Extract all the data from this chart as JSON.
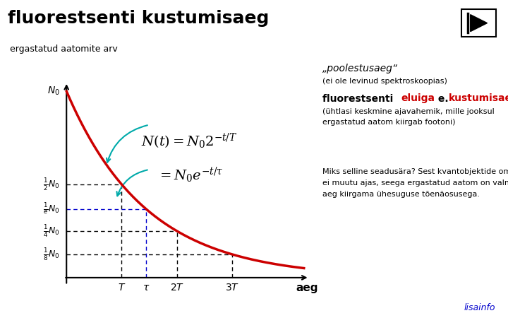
{
  "title": "fluorestsenti kustumisaeg",
  "ylabel": "ergastatud aatomite arv",
  "xlabel_aeg": "aeg",
  "background_color": "#ffffff",
  "curve_color": "#cc0000",
  "dashed_black_color": "#000000",
  "dashed_blue_color": "#0000cc",
  "arrow_cyan_color": "#00AAAA",
  "poolestusaeg_line1": "„poolestusaeg“",
  "poolestusaeg_line2": "(ei ole levinud spektroskoopias)",
  "eluiga_sub": "(ühlasi keskmine ajavahemik, mille jooksul\nergastatud aatom kiirgab footoni)",
  "miks_line1": "Miks selline seadusära? Sest kvantobjektide omadused",
  "miks_line2": "ei muutu ajas, seega ergastatud aatom on valmis kogu",
  "miks_line3": "aeg kiirgama ühesuguse tõenäosusega.",
  "tau": 1.4427,
  "T": 1.0,
  "lisainfo_color": "#0000cc"
}
